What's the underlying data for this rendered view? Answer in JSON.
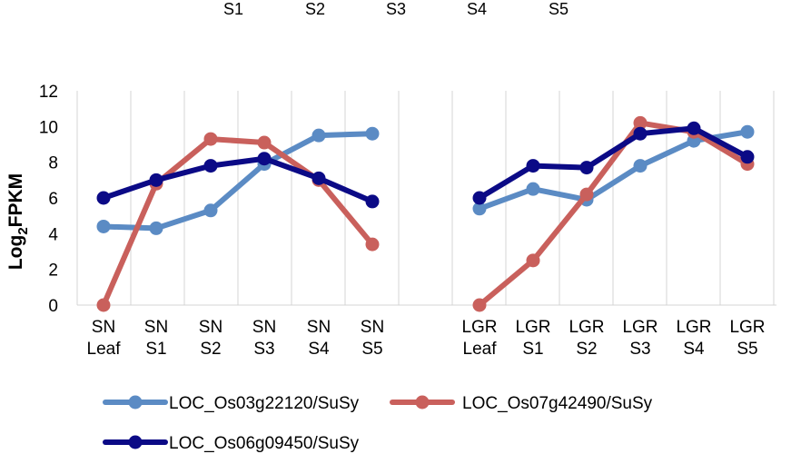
{
  "top_labels": [
    "S1",
    "S2",
    "S3",
    "S4",
    "S5"
  ],
  "chart_data": {
    "type": "line",
    "ylabel": "Log2FPKM",
    "ylabel_main": "Log",
    "ylabel_sub": "2",
    "ylabel_rest": "FPKM",
    "ylim": [
      0,
      12
    ],
    "yticks": [
      0,
      2,
      4,
      6,
      8,
      10,
      12
    ],
    "grid": "vertical",
    "legend_position": "bottom",
    "panels": [
      {
        "categories": [
          [
            "SN",
            "Leaf"
          ],
          [
            "SN",
            "S1"
          ],
          [
            "SN",
            "S2"
          ],
          [
            "SN",
            "S3"
          ],
          [
            "SN",
            "S4"
          ],
          [
            "SN",
            "S5"
          ]
        ],
        "series": [
          {
            "name": "LOC_Os03g22120/SuSy",
            "values": [
              4.4,
              4.3,
              5.3,
              7.9,
              9.5,
              9.6
            ]
          },
          {
            "name": "LOC_Os07g42490/SuSy",
            "values": [
              0.0,
              6.8,
              9.3,
              9.1,
              7.0,
              3.4
            ]
          },
          {
            "name": "LOC_Os06g09450/SuSy",
            "values": [
              6.0,
              7.0,
              7.8,
              8.2,
              7.1,
              5.8
            ]
          }
        ]
      },
      {
        "categories": [
          [
            "LGR",
            "Leaf"
          ],
          [
            "LGR",
            "S1"
          ],
          [
            "LGR",
            "S2"
          ],
          [
            "LGR",
            "S3"
          ],
          [
            "LGR",
            "S4"
          ],
          [
            "LGR",
            "S5"
          ]
        ],
        "series": [
          {
            "name": "LOC_Os03g22120/SuSy",
            "values": [
              5.4,
              6.5,
              5.9,
              7.8,
              9.2,
              9.7
            ]
          },
          {
            "name": "LOC_Os07g42490/SuSy",
            "values": [
              0.0,
              2.5,
              6.2,
              10.2,
              9.7,
              7.9
            ]
          },
          {
            "name": "LOC_Os06g09450/SuSy",
            "values": [
              6.0,
              7.8,
              7.7,
              9.6,
              9.9,
              8.3
            ]
          }
        ]
      }
    ],
    "legend": [
      {
        "name": "LOC_Os03g22120/SuSy",
        "color": "#5B8BC4"
      },
      {
        "name": "LOC_Os07g42490/SuSy",
        "color": "#C9605C"
      },
      {
        "name": "LOC_Os06g09450/SuSy",
        "color": "#0B0A86"
      }
    ],
    "colors": [
      "#5B8BC4",
      "#C9605C",
      "#0B0A86"
    ]
  }
}
